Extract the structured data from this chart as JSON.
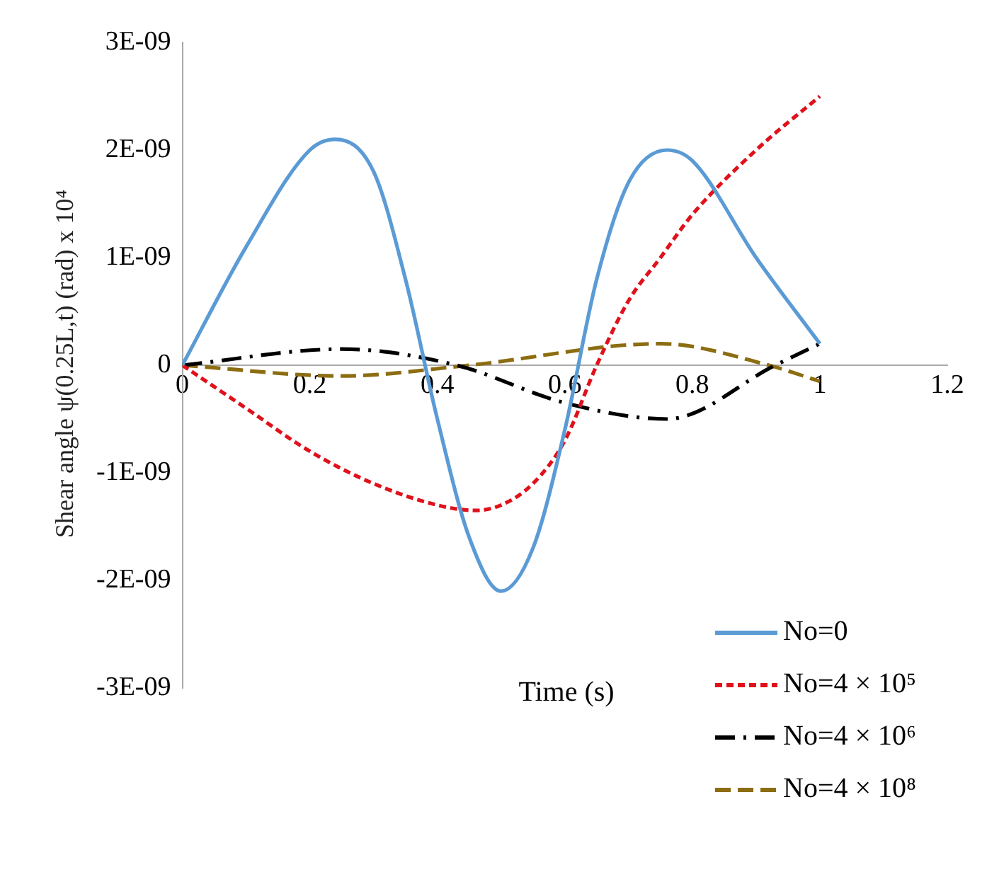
{
  "chart_data": {
    "type": "line",
    "xlabel": "Time (s)",
    "ylabel": "Shear angle ψ(0.25L,t) (rad) x 10⁴",
    "xlim": [
      0,
      1.2
    ],
    "xticks": [
      0,
      0.2,
      0.4,
      0.6,
      0.8,
      1,
      1.2
    ],
    "ylim": [
      -3e-09,
      3e-09
    ],
    "yticks": [
      {
        "value": -3e-09,
        "label": "-3E-09"
      },
      {
        "value": -2e-09,
        "label": "-2E-09"
      },
      {
        "value": -1e-09,
        "label": "-1E-09"
      },
      0,
      {
        "value": 1e-09,
        "label": "1E-09"
      },
      {
        "value": 2e-09,
        "label": "2E-09"
      },
      {
        "value": 3e-09,
        "label": "3E-09"
      }
    ],
    "grid": false,
    "legend": "bottom right",
    "marker": "none",
    "series": [
      {
        "name": "No=0",
        "color": "#5b9bd5",
        "line_style": "solid",
        "x": [
          0,
          0.1,
          0.2,
          0.24,
          0.3,
          0.35,
          0.4,
          0.45,
          0.5,
          0.55,
          0.6,
          0.65,
          0.7,
          0.76,
          0.8,
          0.9,
          1
        ],
        "values": [
          0,
          1.1e-09,
          2e-09,
          2.1e-09,
          1.8e-09,
          8e-10,
          -5e-10,
          -1.6e-09,
          -2.1e-09,
          -1.7e-09,
          -6e-10,
          8e-10,
          1.7e-09,
          2e-09,
          1.9e-09,
          1e-09,
          2e-10
        ]
      },
      {
        "name": "No=4 × 10⁵",
        "color": "#e0111b",
        "line_style": "dashed",
        "x": [
          0,
          0.1,
          0.2,
          0.3,
          0.4,
          0.46,
          0.5,
          0.55,
          0.6,
          0.65,
          0.7,
          0.75,
          0.8,
          0.9,
          1
        ],
        "values": [
          0,
          -4e-10,
          -8e-10,
          -1.1e-09,
          -1.3e-09,
          -1.35e-09,
          -1.3e-09,
          -1.1e-09,
          -7e-10,
          0,
          6e-10,
          1e-09,
          1.4e-09,
          2e-09,
          2.5e-09
        ]
      },
      {
        "name": "No=4 × 10⁶",
        "color": "#000000",
        "line_style": "dashed",
        "x": [
          0,
          0.25,
          0.43,
          0.6,
          0.76,
          0.93,
          1
        ],
        "values": [
          0,
          1.5e-10,
          0,
          -3.5e-10,
          -5e-10,
          0,
          2e-10
        ]
      },
      {
        "name": "No=4 × 10⁸",
        "color": "#8c6d12",
        "line_style": "dashed",
        "x": [
          0,
          0.25,
          0.45,
          0.75,
          0.92,
          1
        ],
        "values": [
          0,
          -1e-10,
          0,
          2e-10,
          0,
          -1.5e-10
        ]
      }
    ]
  }
}
